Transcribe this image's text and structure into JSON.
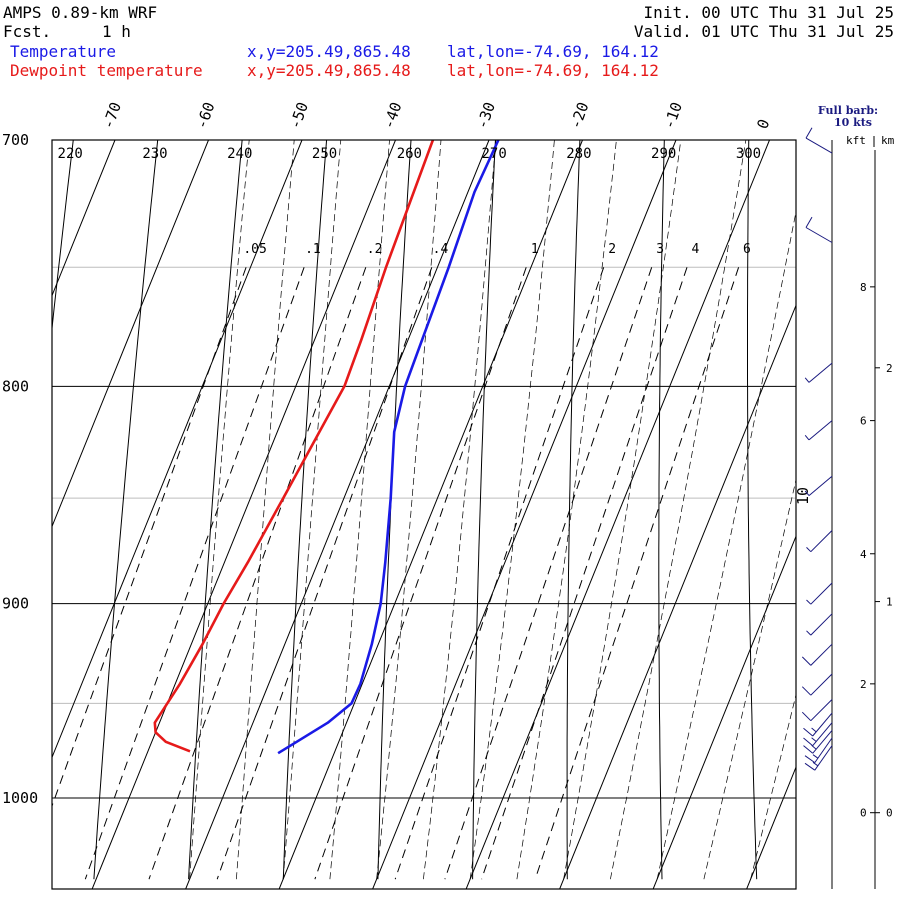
{
  "header": {
    "model": "AMPS 0.89-km WRF",
    "fcst_label": "Fcst.",
    "fcst_value": "1 h",
    "init": "Init. 00 UTC Thu 31 Jul 25",
    "valid": "Valid. 01 UTC Thu 31 Jul 25",
    "temp_label": "Temperature",
    "temp_xy": "x,y=205.49,865.48",
    "temp_latlon": "lat,lon=-74.69, 164.12",
    "dew_label": "Dewpoint temperature",
    "dew_xy": "x,y=205.49,865.48",
    "dew_latlon": "lat,lon=-74.69, 164.12",
    "barb_note_1": "Full barb:",
    "barb_note_2": "10 kts",
    "height_units_kft": "kft",
    "height_units_km": "km"
  },
  "colors": {
    "temperature": "#1a1ae6",
    "dewpoint": "#e61a1a",
    "isobar": "#000000",
    "minor_isobar": "#bdbdbd",
    "barb": "#1a1a80"
  },
  "chart_data": {
    "type": "line",
    "title": "",
    "xlabel": "",
    "ylabel": "",
    "ylim": [
      1040,
      700
    ],
    "y_scale": "log-pressure",
    "pressure_levels": [
      700,
      800,
      900,
      1000
    ],
    "minor_pressure_levels": [
      750,
      850,
      950
    ],
    "temperature_ticks": [
      -70,
      -60,
      -50,
      -40,
      -30,
      -20,
      -10,
      0
    ],
    "potential_temperature_labels": [
      220,
      230,
      240,
      250,
      260,
      270,
      280,
      290,
      300
    ],
    "mixing_ratio_labels": [
      ".05",
      ".1",
      ".2",
      ".4",
      "1",
      "2",
      "3",
      "4",
      "6"
    ],
    "mixing_ratio_values": [
      0.05,
      0.1,
      0.2,
      0.4,
      1,
      2,
      3,
      4,
      6
    ],
    "tenth_label": "10",
    "height_km_ticks": [
      {
        "label": "0",
        "p": 1008
      },
      {
        "label": "1",
        "p": 899
      },
      {
        "label": "2",
        "p": 792
      }
    ],
    "height_kft_ticks": [
      {
        "label": "0",
        "p": 1008
      },
      {
        "label": "2",
        "p": 940
      },
      {
        "label": "4",
        "p": 876
      },
      {
        "label": "6",
        "p": 815
      },
      {
        "label": "8",
        "p": 758
      }
    ],
    "series": [
      {
        "key": "temperature",
        "name": "Temperature",
        "points": [
          {
            "p": 700,
            "t": -29.0
          },
          {
            "p": 720,
            "t": -29.3
          },
          {
            "p": 750,
            "t": -28.8
          },
          {
            "p": 780,
            "t": -28.5
          },
          {
            "p": 800,
            "t": -28.3
          },
          {
            "p": 820,
            "t": -27.5
          },
          {
            "p": 850,
            "t": -25.0
          },
          {
            "p": 880,
            "t": -22.8
          },
          {
            "p": 900,
            "t": -21.5
          },
          {
            "p": 920,
            "t": -20.7
          },
          {
            "p": 940,
            "t": -20.2
          },
          {
            "p": 950,
            "t": -20.3
          },
          {
            "p": 960,
            "t": -22.0
          },
          {
            "p": 970,
            "t": -24.5
          },
          {
            "p": 976,
            "t": -26.0
          }
        ]
      },
      {
        "key": "dewpoint",
        "name": "Dewpoint temperature",
        "points": [
          {
            "p": 700,
            "t": -36.0
          },
          {
            "p": 750,
            "t": -35.5
          },
          {
            "p": 780,
            "t": -35.0
          },
          {
            "p": 800,
            "t": -34.8
          },
          {
            "p": 820,
            "t": -35.5
          },
          {
            "p": 850,
            "t": -36.5
          },
          {
            "p": 880,
            "t": -37.5
          },
          {
            "p": 900,
            "t": -38.3
          },
          {
            "p": 920,
            "t": -38.8
          },
          {
            "p": 940,
            "t": -39.5
          },
          {
            "p": 960,
            "t": -40.5
          },
          {
            "p": 965,
            "t": -40.0
          },
          {
            "p": 970,
            "t": -38.5
          },
          {
            "p": 975,
            "t": -35.5
          }
        ]
      }
    ],
    "wind_barbs": [
      {
        "p": 705,
        "dir": 300,
        "kt": 10
      },
      {
        "p": 740,
        "dir": 300,
        "kt": 12
      },
      {
        "p": 790,
        "dir": 230,
        "kt": 8
      },
      {
        "p": 815,
        "dir": 230,
        "kt": 8
      },
      {
        "p": 840,
        "dir": 230,
        "kt": 8
      },
      {
        "p": 865,
        "dir": 225,
        "kt": 8
      },
      {
        "p": 890,
        "dir": 225,
        "kt": 8
      },
      {
        "p": 905,
        "dir": 225,
        "kt": 8
      },
      {
        "p": 920,
        "dir": 225,
        "kt": 10
      },
      {
        "p": 935,
        "dir": 225,
        "kt": 10
      },
      {
        "p": 948,
        "dir": 225,
        "kt": 12
      },
      {
        "p": 955,
        "dir": 220,
        "kt": 15
      },
      {
        "p": 960,
        "dir": 220,
        "kt": 15
      },
      {
        "p": 964,
        "dir": 220,
        "kt": 15
      },
      {
        "p": 968,
        "dir": 215,
        "kt": 15
      },
      {
        "p": 972,
        "dir": 215,
        "kt": 18
      }
    ]
  }
}
